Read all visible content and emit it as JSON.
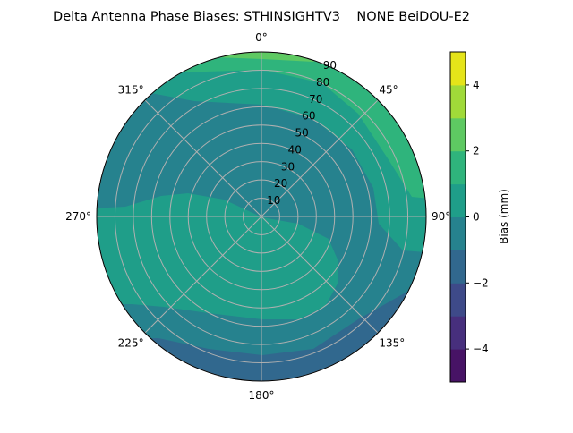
{
  "chart_data": {
    "type": "contour",
    "projection": "polar",
    "title": "Delta Antenna Phase Biases: STHINSIGHTV3    NONE BeiDOU-E2",
    "angular_ticks": [
      "0°",
      "45°",
      "90°",
      "135°",
      "180°",
      "225°",
      "270°",
      "315°"
    ],
    "radial_ticks": [
      "10",
      "20",
      "30",
      "40",
      "50",
      "60",
      "70",
      "80",
      "90"
    ],
    "radial_range": [
      0,
      90
    ],
    "grid": true,
    "levels": [
      -5,
      -4,
      -3,
      -2,
      -1,
      0,
      1,
      2,
      3,
      4,
      5
    ],
    "level_colors": [
      "#471365",
      "#472f7d",
      "#3e4a89",
      "#31688e",
      "#26828e",
      "#1f9e89",
      "#2fb47c",
      "#5ec962",
      "#a0da39",
      "#e5e419"
    ],
    "colorbar": {
      "label": "Bias (mm)",
      "ticks": [
        "−4",
        "−2",
        "0",
        "2",
        "4"
      ],
      "range": [
        -5,
        5
      ]
    },
    "regions": [
      {
        "band": [
          -1,
          0
        ],
        "where": "center and most of the sky"
      },
      {
        "band": [
          0,
          1
        ],
        "where": "south-west to south-east half, and north-east rim"
      },
      {
        "band": [
          1,
          2
        ],
        "where": "north to east rim"
      },
      {
        "band": [
          2,
          3
        ],
        "where": "near north at horizon"
      },
      {
        "band": [
          -2,
          -1
        ],
        "where": "southern rim"
      },
      {
        "band": [
          -3,
          -2
        ],
        "where": "south-east horizon sliver"
      }
    ]
  }
}
